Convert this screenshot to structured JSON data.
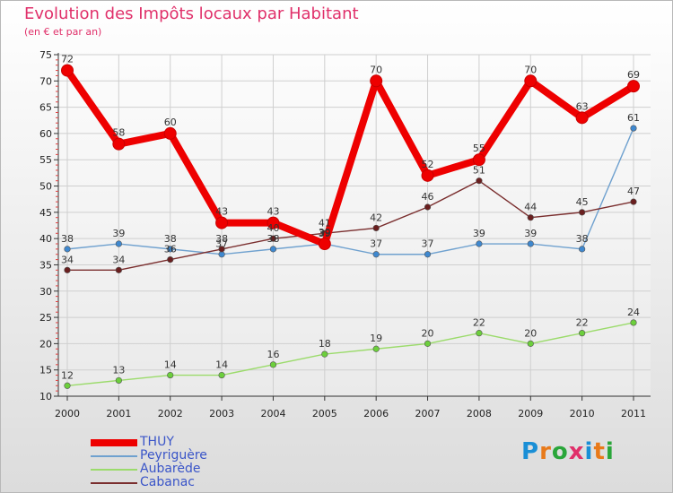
{
  "chart_data": {
    "type": "line",
    "title": "Evolution des Impôts locaux par Habitant",
    "subtitle": "(en € et par an)",
    "xlabel": "",
    "ylabel": "",
    "ylim": [
      10,
      75
    ],
    "y_ticks": [
      "10",
      "15",
      "20",
      "25",
      "30",
      "35",
      "40",
      "45",
      "50",
      "55",
      "60",
      "65",
      "70",
      "75"
    ],
    "categories": [
      "2000",
      "2001",
      "2002",
      "2003",
      "2004",
      "2005",
      "2006",
      "2007",
      "2008",
      "2009",
      "2010",
      "2011"
    ],
    "grid": true,
    "legend_position": "bottom-left",
    "series": [
      {
        "name": "Peyriguère",
        "color": "#6fa1cf",
        "marker": "#3f88cf",
        "values": [
          38,
          39,
          38,
          37,
          38,
          39,
          37,
          37,
          39,
          39,
          38,
          61
        ],
        "labels": [
          "38",
          "39",
          "38",
          "37",
          "38",
          "39",
          "37",
          "37",
          "39",
          "39",
          "38",
          "61"
        ]
      },
      {
        "name": "Aubarède",
        "color": "#9bdb6b",
        "marker": "#6ccf3c",
        "values": [
          12,
          13,
          14,
          14,
          16,
          18,
          19,
          20,
          22,
          20,
          22,
          24
        ],
        "labels": [
          "12",
          "13",
          "14",
          "14",
          "16",
          "18",
          "19",
          "20",
          "22",
          "20",
          "22",
          "24"
        ]
      },
      {
        "name": "Cabanac",
        "color": "#7a2e2e",
        "marker": "#6a1f1f",
        "values": [
          34,
          34,
          36,
          38,
          40,
          41,
          42,
          46,
          51,
          44,
          45,
          47
        ],
        "labels": [
          "34",
          "34",
          "36",
          "38",
          "40",
          "41",
          "42",
          "46",
          "51",
          "44",
          "45",
          "47"
        ]
      },
      {
        "name": "THUY",
        "color": "#ee0000",
        "marker": "#ee0000",
        "values": [
          72,
          58,
          60,
          43,
          43,
          39,
          70,
          52,
          55,
          70,
          63,
          69
        ],
        "labels": [
          "72",
          "58",
          "60",
          "43",
          "43",
          "39",
          "70",
          "52",
          "55",
          "70",
          "63",
          "69"
        ]
      }
    ]
  },
  "legend": [
    {
      "name": "THUY",
      "color": "#ee0000"
    },
    {
      "name": "Peyriguère",
      "color": "#6fa1cf"
    },
    {
      "name": "Aubarède",
      "color": "#9bdb6b"
    },
    {
      "name": "Cabanac",
      "color": "#7a2e2e"
    }
  ],
  "logo": {
    "text": "Proxiti",
    "letters": [
      {
        "ch": "P",
        "color": "#1a8fd6"
      },
      {
        "ch": "r",
        "color": "#e87a1a"
      },
      {
        "ch": "o",
        "color": "#2aa63a"
      },
      {
        "ch": "x",
        "color": "#e0306a"
      },
      {
        "ch": "i",
        "color": "#1a8fd6"
      },
      {
        "ch": "t",
        "color": "#e87a1a"
      },
      {
        "ch": "i",
        "color": "#2aa63a"
      }
    ]
  }
}
